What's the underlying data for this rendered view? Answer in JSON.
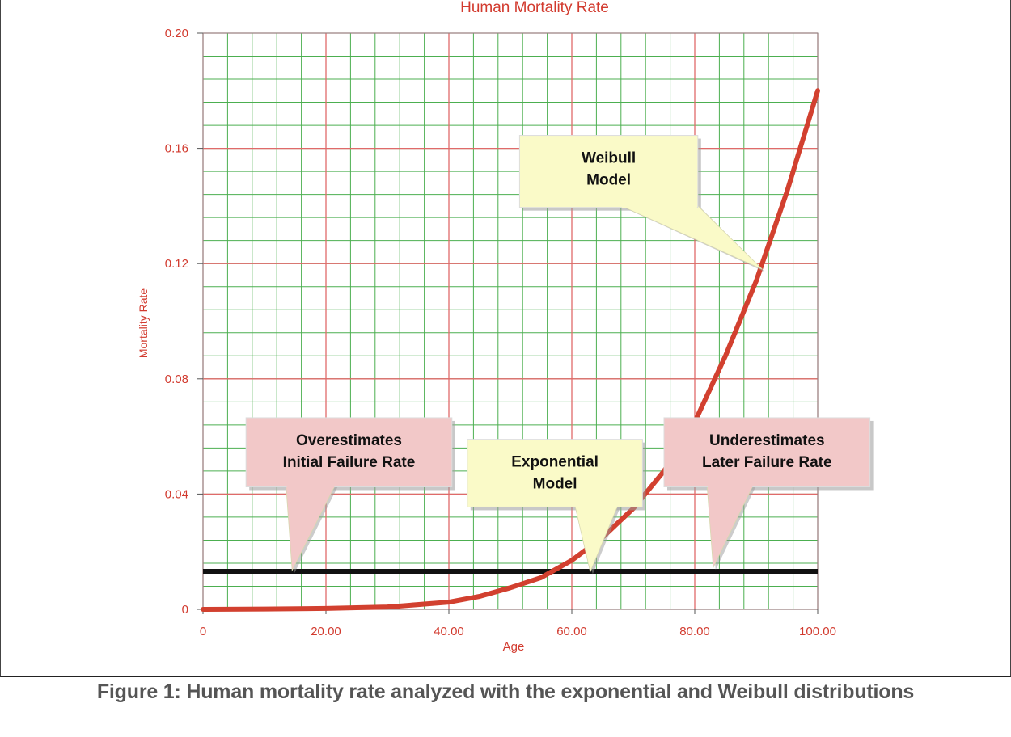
{
  "caption": "Figure 1: Human mortality rate analyzed with the exponential and Weibull distributions",
  "colors": {
    "axis_text": "#d23a2e",
    "major_grid": "#e06a6a",
    "minor_grid": "#4caf50",
    "weibull_curve": "#d2402f",
    "exponential_line": "#111111",
    "callout_yellow": "#fafac8",
    "callout_pink": "#f2c8c8"
  },
  "chart_data": {
    "type": "line",
    "title": "Human Mortality Rate",
    "xlabel": "Age",
    "ylabel": "Mortality Rate",
    "xlim": [
      0,
      100
    ],
    "ylim": [
      0,
      0.2
    ],
    "x_ticks": [
      0,
      20,
      40,
      60,
      80,
      100
    ],
    "x_tick_labels": [
      "0",
      "20.00",
      "40.00",
      "60.00",
      "80.00",
      "100.00"
    ],
    "y_ticks": [
      0,
      0.04,
      0.08,
      0.12,
      0.16,
      0.2
    ],
    "y_tick_labels": [
      "0",
      "0.04",
      "0.08",
      "0.12",
      "0.16",
      "0.20"
    ],
    "grid": true,
    "series": [
      {
        "style": "thick-red-curve",
        "x": [
          0,
          10,
          20,
          30,
          40,
          45,
          50,
          55,
          60,
          65,
          70,
          75,
          80,
          85,
          90,
          95,
          100
        ],
        "y": [
          0,
          0.0001,
          0.0003,
          0.0008,
          0.0025,
          0.0045,
          0.0075,
          0.011,
          0.017,
          0.025,
          0.035,
          0.048,
          0.065,
          0.088,
          0.114,
          0.145,
          0.18
        ]
      },
      {
        "style": "thick-black-line",
        "x": [
          0,
          100
        ],
        "y": [
          0.0132,
          0.0132
        ]
      }
    ],
    "annotations": [
      {
        "lines": [
          "Weibull",
          "Model"
        ],
        "color": "yellow",
        "box": {
          "x1": 51.5,
          "x2": 80.5,
          "y1": 0.1395,
          "y2": 0.1645
        },
        "pointer": {
          "base_x1": 68,
          "base_x2": 80.5,
          "base_y": 0.1395,
          "tip_x": 91,
          "tip_y": 0.118
        }
      },
      {
        "lines": [
          "Overestimates",
          "Initial Failure Rate"
        ],
        "color": "pink",
        "box": {
          "x1": 7,
          "x2": 40.5,
          "y1": 0.0425,
          "y2": 0.0665
        },
        "pointer": {
          "base_x1": 13.5,
          "base_x2": 21.5,
          "base_y": 0.0425,
          "tip_x": 14.5,
          "tip_y": 0.0135
        },
        "text_y_offsets": [
          34,
          61
        ]
      },
      {
        "lines": [
          "Exponential",
          "Model"
        ],
        "color": "yellow",
        "box": {
          "x1": 43,
          "x2": 71.5,
          "y1": 0.0355,
          "y2": 0.059
        },
        "pointer": {
          "base_x1": 60.5,
          "base_x2": 67.5,
          "base_y": 0.0355,
          "tip_x": 63,
          "tip_y": 0.013
        }
      },
      {
        "lines": [
          "Underestimates",
          "Later Failure Rate"
        ],
        "color": "pink",
        "box": {
          "x1": 75,
          "x2": 108.5,
          "y1": 0.0425,
          "y2": 0.0665
        },
        "pointer": {
          "base_x1": 82,
          "base_x2": 89.5,
          "base_y": 0.0425,
          "tip_x": 83,
          "tip_y": 0.0145
        }
      }
    ]
  }
}
